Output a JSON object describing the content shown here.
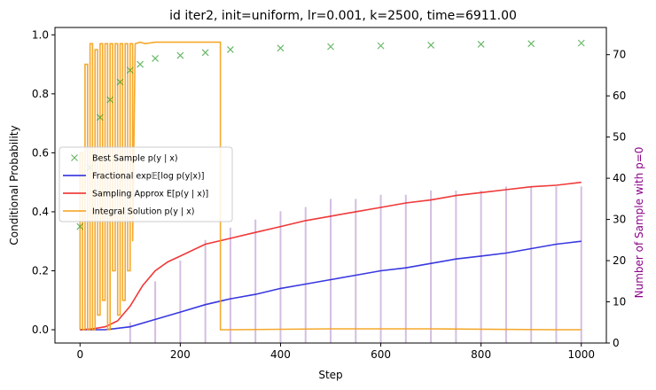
{
  "chart_data": {
    "type": "line",
    "title": "id iter2, init=uniform, lr=0.001, k=2500, time=6911.00",
    "xlabel": "Step",
    "ylabel": "Conditional Probability",
    "ylabel_right": "Number of Sample with p=0",
    "xlim": [
      -50,
      1050
    ],
    "ylim": [
      -0.045,
      1.025
    ],
    "ylim_right": [
      0,
      76.6
    ],
    "x_ticks": [
      0,
      200,
      400,
      600,
      800,
      1000
    ],
    "x_tick_labels": [
      "0",
      "200",
      "400",
      "600",
      "800",
      "1000"
    ],
    "y_ticks": [
      0.0,
      0.2,
      0.4,
      0.6,
      0.8,
      1.0
    ],
    "y_tick_labels": [
      "0.0",
      "0.2",
      "0.4",
      "0.6",
      "0.8",
      "1.0"
    ],
    "y_right_ticks": [
      0,
      10,
      20,
      30,
      40,
      50,
      60,
      70
    ],
    "y_right_tick_labels": [
      "0",
      "10",
      "20",
      "30",
      "40",
      "50",
      "60",
      "70"
    ],
    "legend": {
      "placement": "center-left",
      "entries": [
        {
          "label": "Best Sample p(y | x)",
          "color": "#2a9a2a",
          "marker": "x"
        },
        {
          "label": "Fractional exp𝔼[log p(y|x)]",
          "color": "#2222dd",
          "marker": "line"
        },
        {
          "label": "Sampling Approx E[p(y | x)]",
          "color": "#ee2222",
          "marker": "line"
        },
        {
          "label": "Integral Solution p(y | x)",
          "color": "#f5a015",
          "marker": "line"
        }
      ]
    },
    "series": [
      {
        "name": "Best Sample p(y | x)",
        "kind": "scatter",
        "color": "#2a9a2a",
        "x": [
          0,
          20,
          40,
          60,
          80,
          100,
          120,
          150,
          200,
          250,
          300,
          400,
          500,
          600,
          700,
          800,
          900,
          1000
        ],
        "y": [
          0.35,
          0.55,
          0.72,
          0.78,
          0.84,
          0.88,
          0.9,
          0.92,
          0.93,
          0.94,
          0.95,
          0.955,
          0.96,
          0.963,
          0.965,
          0.968,
          0.97,
          0.972
        ]
      },
      {
        "name": "Fractional exp𝔼[log p(y|x)]",
        "kind": "line",
        "color": "#2222dd",
        "x": [
          0,
          50,
          100,
          150,
          200,
          250,
          300,
          350,
          400,
          450,
          500,
          550,
          600,
          650,
          700,
          750,
          800,
          850,
          900,
          950,
          1000
        ],
        "y": [
          0.0,
          0.0,
          0.01,
          0.035,
          0.06,
          0.085,
          0.105,
          0.12,
          0.14,
          0.155,
          0.17,
          0.185,
          0.2,
          0.21,
          0.225,
          0.24,
          0.25,
          0.26,
          0.275,
          0.29,
          0.3
        ]
      },
      {
        "name": "Sampling Approx E[p(y | x)]",
        "kind": "line",
        "color": "#ee2222",
        "x": [
          0,
          25,
          50,
          75,
          100,
          125,
          150,
          175,
          200,
          250,
          300,
          350,
          400,
          450,
          500,
          550,
          600,
          650,
          700,
          750,
          800,
          850,
          900,
          950,
          1000
        ],
        "y": [
          0.0,
          0.003,
          0.01,
          0.03,
          0.08,
          0.15,
          0.2,
          0.23,
          0.25,
          0.29,
          0.31,
          0.33,
          0.35,
          0.37,
          0.385,
          0.4,
          0.415,
          0.43,
          0.44,
          0.455,
          0.465,
          0.475,
          0.485,
          0.49,
          0.5
        ]
      },
      {
        "name": "Integral Solution p(y | x)",
        "kind": "line",
        "color": "#f5a015",
        "x": [
          0,
          0,
          5,
          5,
          10,
          10,
          15,
          15,
          20,
          20,
          25,
          25,
          30,
          30,
          35,
          35,
          40,
          40,
          45,
          45,
          50,
          50,
          55,
          55,
          60,
          60,
          65,
          65,
          70,
          70,
          75,
          75,
          80,
          80,
          85,
          85,
          90,
          90,
          95,
          95,
          100,
          100,
          105,
          105,
          110,
          120,
          130,
          150,
          200,
          250,
          280,
          280,
          300,
          500,
          700,
          950,
          1000
        ],
        "y": [
          0.0,
          0.6,
          0.6,
          0.0,
          0.0,
          0.9,
          0.9,
          0.0,
          0.0,
          0.97,
          0.97,
          0.0,
          0.0,
          0.95,
          0.95,
          0.05,
          0.05,
          0.97,
          0.97,
          0.1,
          0.1,
          0.97,
          0.97,
          0.0,
          0.0,
          0.97,
          0.97,
          0.2,
          0.2,
          0.97,
          0.97,
          0.05,
          0.05,
          0.97,
          0.97,
          0.1,
          0.1,
          0.97,
          0.97,
          0.2,
          0.2,
          0.97,
          0.97,
          0.3,
          0.97,
          0.975,
          0.97,
          0.975,
          0.975,
          0.975,
          0.975,
          0.0,
          0.0,
          0.003,
          0.003,
          0.0,
          0.0
        ]
      },
      {
        "name": "Number of Sample with p=0",
        "kind": "bar",
        "axis": "right",
        "color": "#b088c8",
        "x": [
          100,
          150,
          200,
          250,
          300,
          350,
          400,
          450,
          500,
          550,
          600,
          650,
          700,
          750,
          800,
          850,
          900,
          950,
          1000
        ],
        "y": [
          5,
          15,
          20,
          25,
          28,
          30,
          32,
          33,
          35,
          35,
          36,
          36,
          37,
          37,
          37,
          38,
          38,
          38,
          38
        ]
      }
    ]
  },
  "colors": {
    "right_axis_label": "#8b008b",
    "axis": "#000000"
  }
}
